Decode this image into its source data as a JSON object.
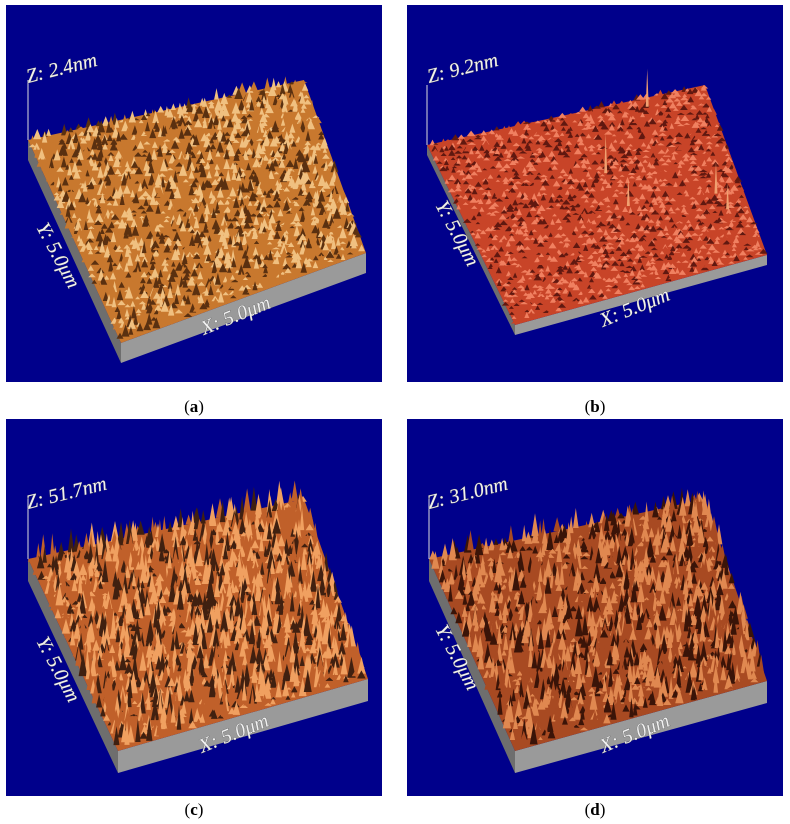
{
  "figures": [
    {
      "id": "a",
      "caption_letter": "a",
      "z_label": "Z: 2.4nm",
      "y_label": "Y: 5.0μm",
      "x_label": "X: 5.0μm",
      "surface_color": "#c8782e",
      "peak_color": "#f0c080",
      "shadow_color": "#5a3010",
      "roughness": 0.35,
      "density": 0.9
    },
    {
      "id": "b",
      "caption_letter": "b",
      "z_label": "Z: 9.2nm",
      "y_label": "Y: 5.0μm",
      "x_label": "X: 5.0μm",
      "surface_color": "#c84428",
      "peak_color": "#f08060",
      "shadow_color": "#601810",
      "roughness": 0.15,
      "density": 1.0
    },
    {
      "id": "c",
      "caption_letter": "c",
      "z_label": "Z: 51.7nm",
      "y_label": "Y: 5.0μm",
      "x_label": "X: 5.0μm",
      "surface_color": "#c0602a",
      "peak_color": "#f0a060",
      "shadow_color": "#402010",
      "roughness": 0.75,
      "density": 0.8
    },
    {
      "id": "d",
      "caption_letter": "d",
      "z_label": "Z: 31.0nm",
      "y_label": "Y: 5.0μm",
      "x_label": "X: 5.0μm",
      "surface_color": "#a84a22",
      "peak_color": "#e08850",
      "shadow_color": "#3a1408",
      "roughness": 0.7,
      "density": 0.75
    }
  ]
}
